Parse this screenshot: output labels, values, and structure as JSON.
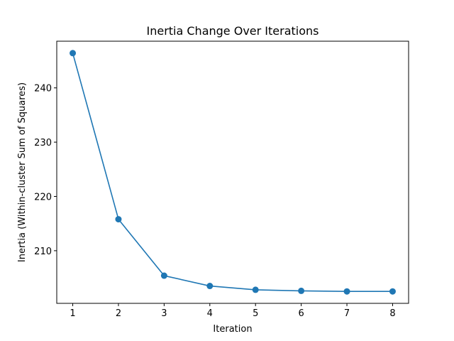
{
  "chart_data": {
    "type": "line",
    "title": "Inertia Change Over Iterations",
    "xlabel": "Iteration",
    "ylabel": "Inertia (Within-cluster Sum of Squares)",
    "x": [
      1,
      2,
      3,
      4,
      5,
      6,
      7,
      8
    ],
    "series": [
      {
        "values": [
          246.4,
          215.8,
          205.4,
          203.5,
          202.8,
          202.6,
          202.5,
          202.5
        ],
        "color": "#1f77b4",
        "marker": "circle"
      }
    ],
    "xlim": [
      0.65,
      8.35
    ],
    "ylim": [
      200.3,
      248.6
    ],
    "xticks": [
      1,
      2,
      3,
      4,
      5,
      6,
      7,
      8
    ],
    "yticks": [
      210,
      220,
      230,
      240
    ],
    "grid": false,
    "legend": "none"
  }
}
